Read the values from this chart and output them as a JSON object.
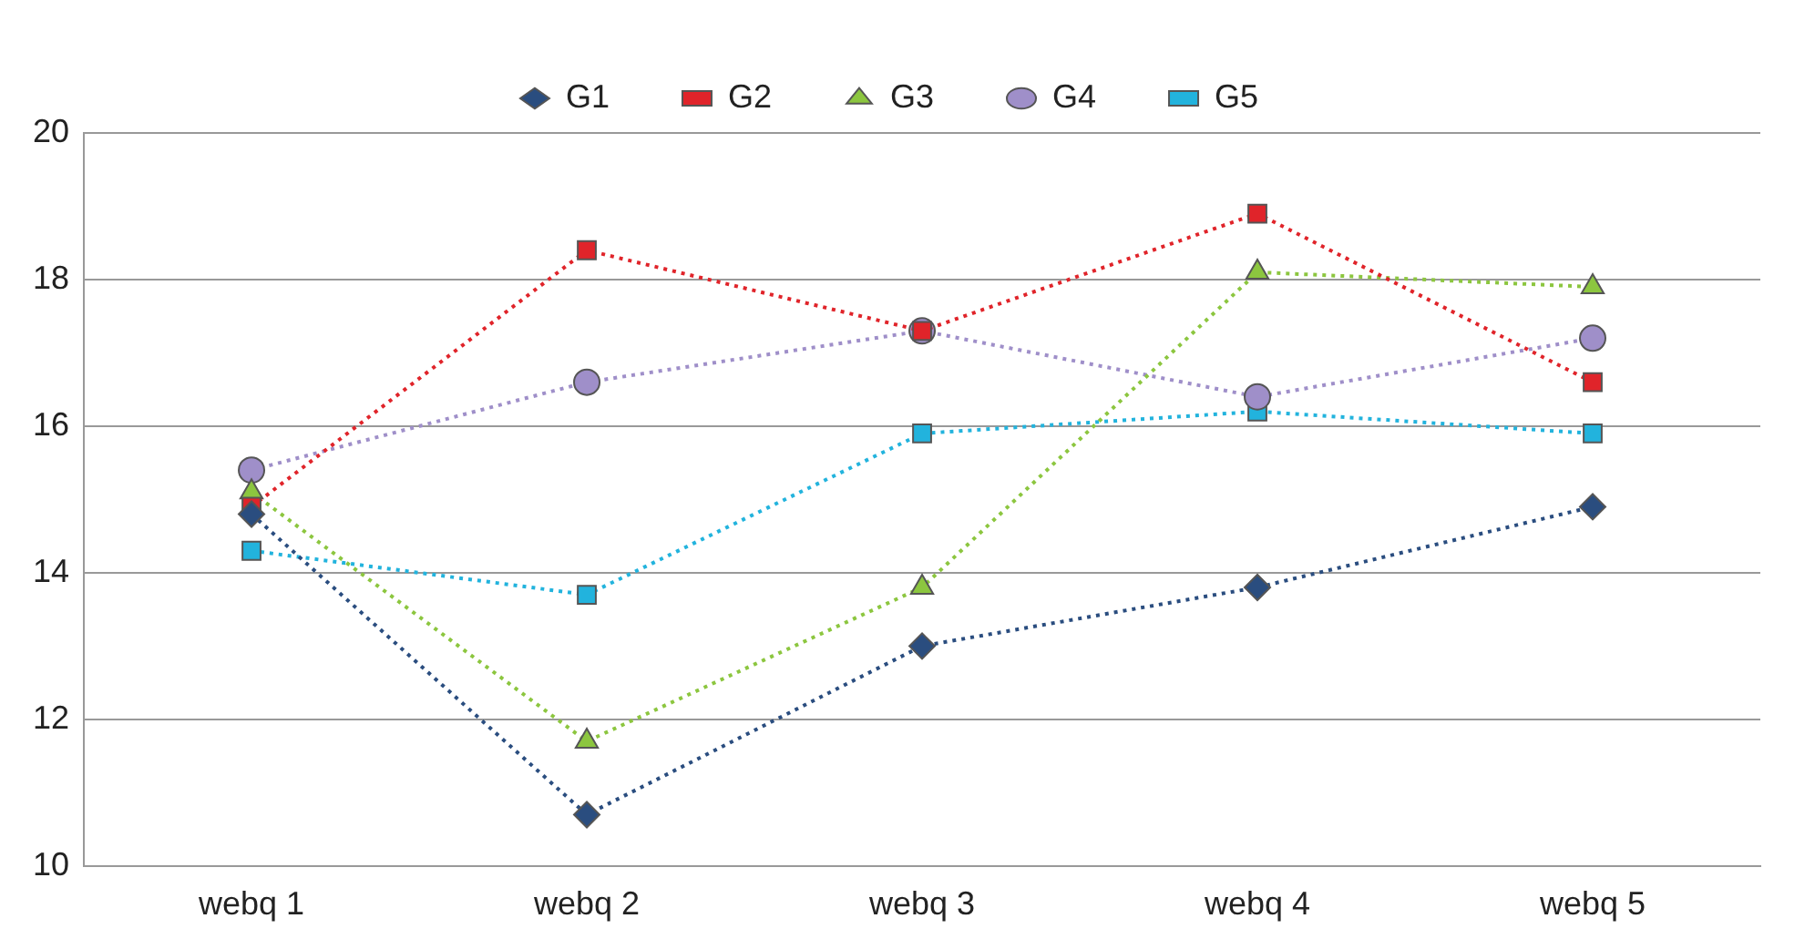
{
  "chart_data": {
    "type": "line",
    "categories": [
      "webq 1",
      "webq 2",
      "webq 3",
      "webq 4",
      "webq 5"
    ],
    "series": [
      {
        "name": "G1",
        "color": "#2a4d7f",
        "marker": "diamond",
        "values": [
          14.8,
          10.7,
          13.0,
          13.8,
          14.9
        ]
      },
      {
        "name": "G2",
        "color": "#e0242a",
        "marker": "square",
        "values": [
          14.9,
          18.4,
          17.3,
          18.9,
          16.6
        ]
      },
      {
        "name": "G3",
        "color": "#8cc63f",
        "marker": "triangle",
        "values": [
          15.1,
          11.7,
          13.8,
          18.1,
          17.9
        ]
      },
      {
        "name": "G4",
        "color": "#9f8fc9",
        "marker": "circle",
        "values": [
          15.4,
          16.6,
          17.3,
          16.4,
          17.2
        ]
      },
      {
        "name": "G5",
        "color": "#22b3dd",
        "marker": "square",
        "values": [
          14.3,
          13.7,
          15.9,
          16.2,
          15.9
        ]
      }
    ],
    "ylim": [
      10,
      20
    ],
    "yticks": [
      10,
      12,
      14,
      16,
      18,
      20
    ],
    "grid": "y",
    "legend": "top",
    "line_style": "dotted"
  }
}
